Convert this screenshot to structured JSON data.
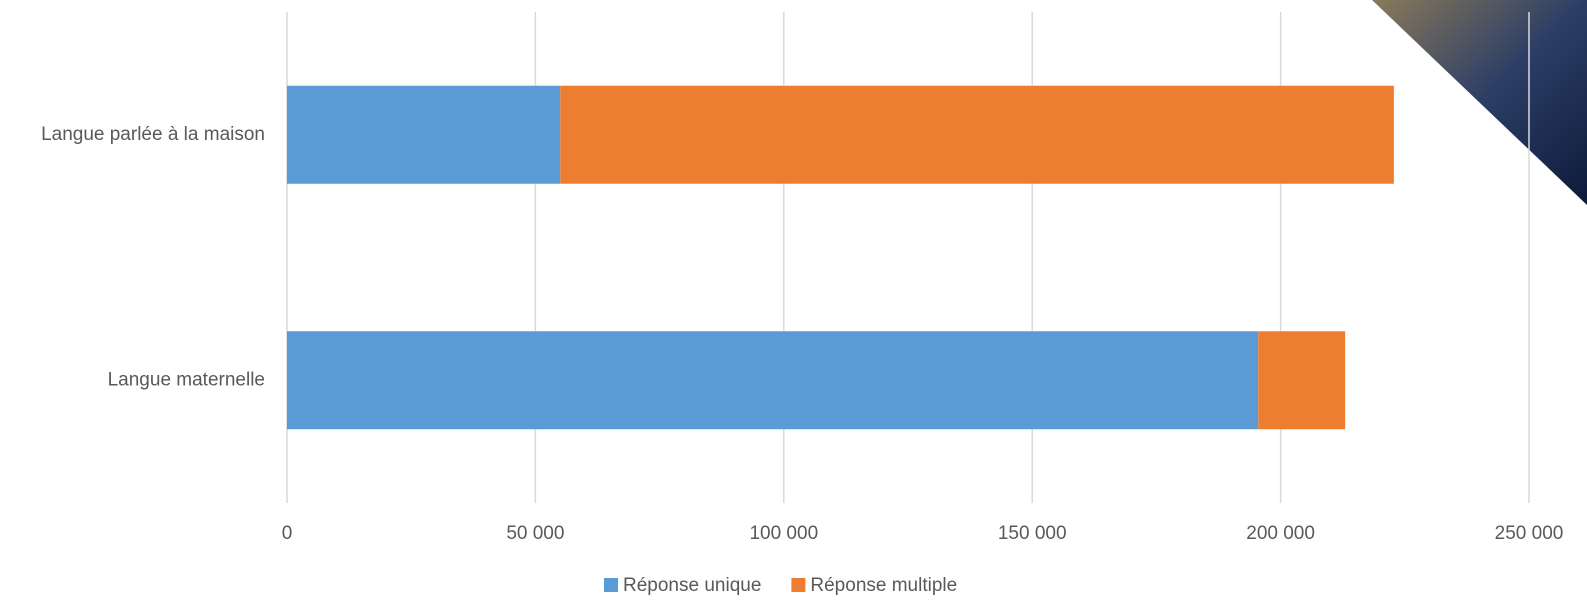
{
  "chart_data": {
    "type": "stacked-bar-horizontal",
    "categories": [
      "Langue parlée à la maison",
      "Langue maternelle"
    ],
    "series": [
      {
        "name": "Réponse unique",
        "color": "#5b9bd5",
        "values": [
          55000,
          195500
        ]
      },
      {
        "name": "Réponse multiple",
        "color": "#ed7d31",
        "values": [
          167800,
          17500
        ]
      }
    ],
    "xlim": [
      0,
      250000
    ],
    "xticks": [
      0,
      {
        "value": 50000,
        "label": "50 000"
      },
      {
        "value": 100000,
        "label": "100 000"
      },
      {
        "value": 150000,
        "label": "150 000"
      },
      {
        "value": 200000,
        "label": "200 000"
      },
      {
        "value": 250000,
        "label": "250 000"
      }
    ],
    "grid": true,
    "legend": "bottom"
  }
}
